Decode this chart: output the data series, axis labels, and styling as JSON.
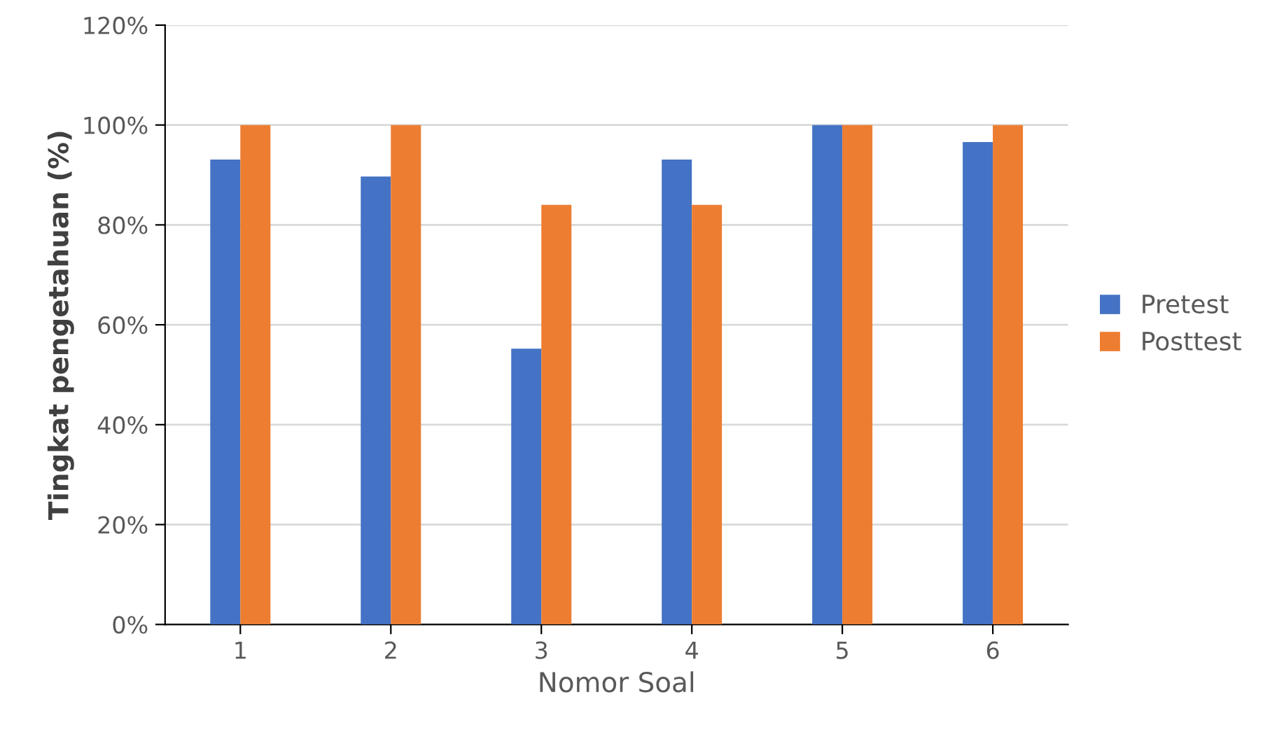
{
  "chart_data": {
    "type": "bar",
    "xlabel": "Nomor Soal",
    "ylabel": "Tingkat pengetahuan (%)",
    "categories": [
      "1",
      "2",
      "3",
      "4",
      "5",
      "6"
    ],
    "series": [
      {
        "name": "Pretest",
        "color": "#4472c4",
        "values": [
          93.1,
          89.7,
          55.2,
          93.1,
          100,
          96.6
        ]
      },
      {
        "name": "Posttest",
        "color": "#ed7d31",
        "values": [
          100,
          100,
          84,
          84,
          100,
          100
        ]
      }
    ],
    "ylim": [
      0,
      120
    ],
    "yticks": [
      {
        "value": 0,
        "label": "0%"
      },
      {
        "value": 20,
        "label": "20%"
      },
      {
        "value": 40,
        "label": "40%"
      },
      {
        "value": 60,
        "label": "60%"
      },
      {
        "value": 80,
        "label": "80%"
      },
      {
        "value": 100,
        "label": "100%"
      },
      {
        "value": 120,
        "label": "120%"
      }
    ],
    "grid": "y",
    "legend": "right"
  }
}
